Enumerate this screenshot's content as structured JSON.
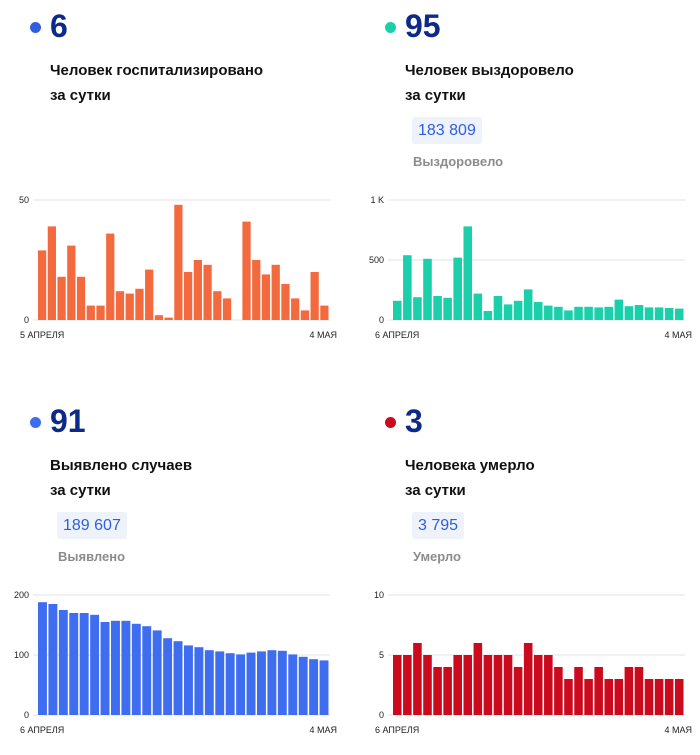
{
  "panels": [
    {
      "value": "6",
      "label_lines": [
        "Человек госпитализировано",
        "за сутки"
      ],
      "color": "#f26a3d",
      "dot_color": "#2f5ee0"
    },
    {
      "value": "95",
      "label_lines": [
        "Человек выздоровело",
        "за сутки"
      ],
      "total": "183 809",
      "total_caption": "Выздоровело",
      "color": "#1ccfab",
      "dot_color": "#1ccfab"
    },
    {
      "value": "91",
      "label_lines": [
        "Выявлено случаев",
        "за сутки"
      ],
      "total": "189 607",
      "total_caption": "Выявлено",
      "color": "#3f6df0",
      "dot_color": "#3f6df0"
    },
    {
      "value": "3",
      "label_lines": [
        "Человека умерло",
        "за сутки"
      ],
      "total": "3 795",
      "total_caption": "Умерло",
      "color": "#cc0a1e",
      "dot_color": "#cc0a1e"
    }
  ],
  "chart_data": [
    {
      "type": "bar",
      "x_start_label": "5 АПРЕЛЯ",
      "x_end_label": "4 МАЯ",
      "yticks": [
        {
          "value": 0,
          "label": "0"
        },
        {
          "value": 50,
          "label": "50"
        }
      ],
      "ylim": [
        0,
        50
      ],
      "values": [
        29,
        39,
        18,
        31,
        18,
        6,
        6,
        36,
        12,
        11,
        13,
        21,
        2,
        1,
        48,
        20,
        25,
        23,
        12,
        9,
        null,
        41,
        25,
        19,
        23,
        15,
        9,
        4,
        20,
        6
      ]
    },
    {
      "type": "bar",
      "x_start_label": "6 АПРЕЛЯ",
      "x_end_label": "4 МАЯ",
      "yticks": [
        {
          "value": 0,
          "label": "0"
        },
        {
          "value": 500,
          "label": "500"
        },
        {
          "value": 1000,
          "label": "1 K"
        }
      ],
      "ylim": [
        0,
        1000
      ],
      "values": [
        160,
        540,
        190,
        510,
        200,
        185,
        520,
        780,
        220,
        75,
        200,
        130,
        160,
        255,
        150,
        120,
        110,
        80,
        110,
        110,
        105,
        110,
        170,
        115,
        125,
        105,
        105,
        100,
        95
      ]
    },
    {
      "type": "bar",
      "x_start_label": "6 АПРЕЛЯ",
      "x_end_label": "4 МАЯ",
      "yticks": [
        {
          "value": 0,
          "label": "0"
        },
        {
          "value": 100,
          "label": "100"
        },
        {
          "value": 200,
          "label": "200"
        }
      ],
      "ylim": [
        0,
        200
      ],
      "values": [
        188,
        185,
        175,
        170,
        170,
        167,
        155,
        157,
        157,
        152,
        148,
        141,
        128,
        123,
        116,
        113,
        108,
        106,
        103,
        101,
        104,
        106,
        108,
        107,
        101,
        97,
        93,
        91
      ]
    },
    {
      "type": "bar",
      "x_start_label": "6 АПРЕЛЯ",
      "x_end_label": "4 МАЯ",
      "yticks": [
        {
          "value": 0,
          "label": "0"
        },
        {
          "value": 5,
          "label": "5"
        },
        {
          "value": 10,
          "label": "10"
        }
      ],
      "ylim": [
        0,
        10
      ],
      "values": [
        5,
        5,
        6,
        5,
        4,
        4,
        5,
        5,
        6,
        5,
        5,
        5,
        4,
        6,
        5,
        5,
        4,
        3,
        4,
        3,
        4,
        3,
        3,
        4,
        4,
        3,
        3,
        3,
        3
      ]
    }
  ]
}
